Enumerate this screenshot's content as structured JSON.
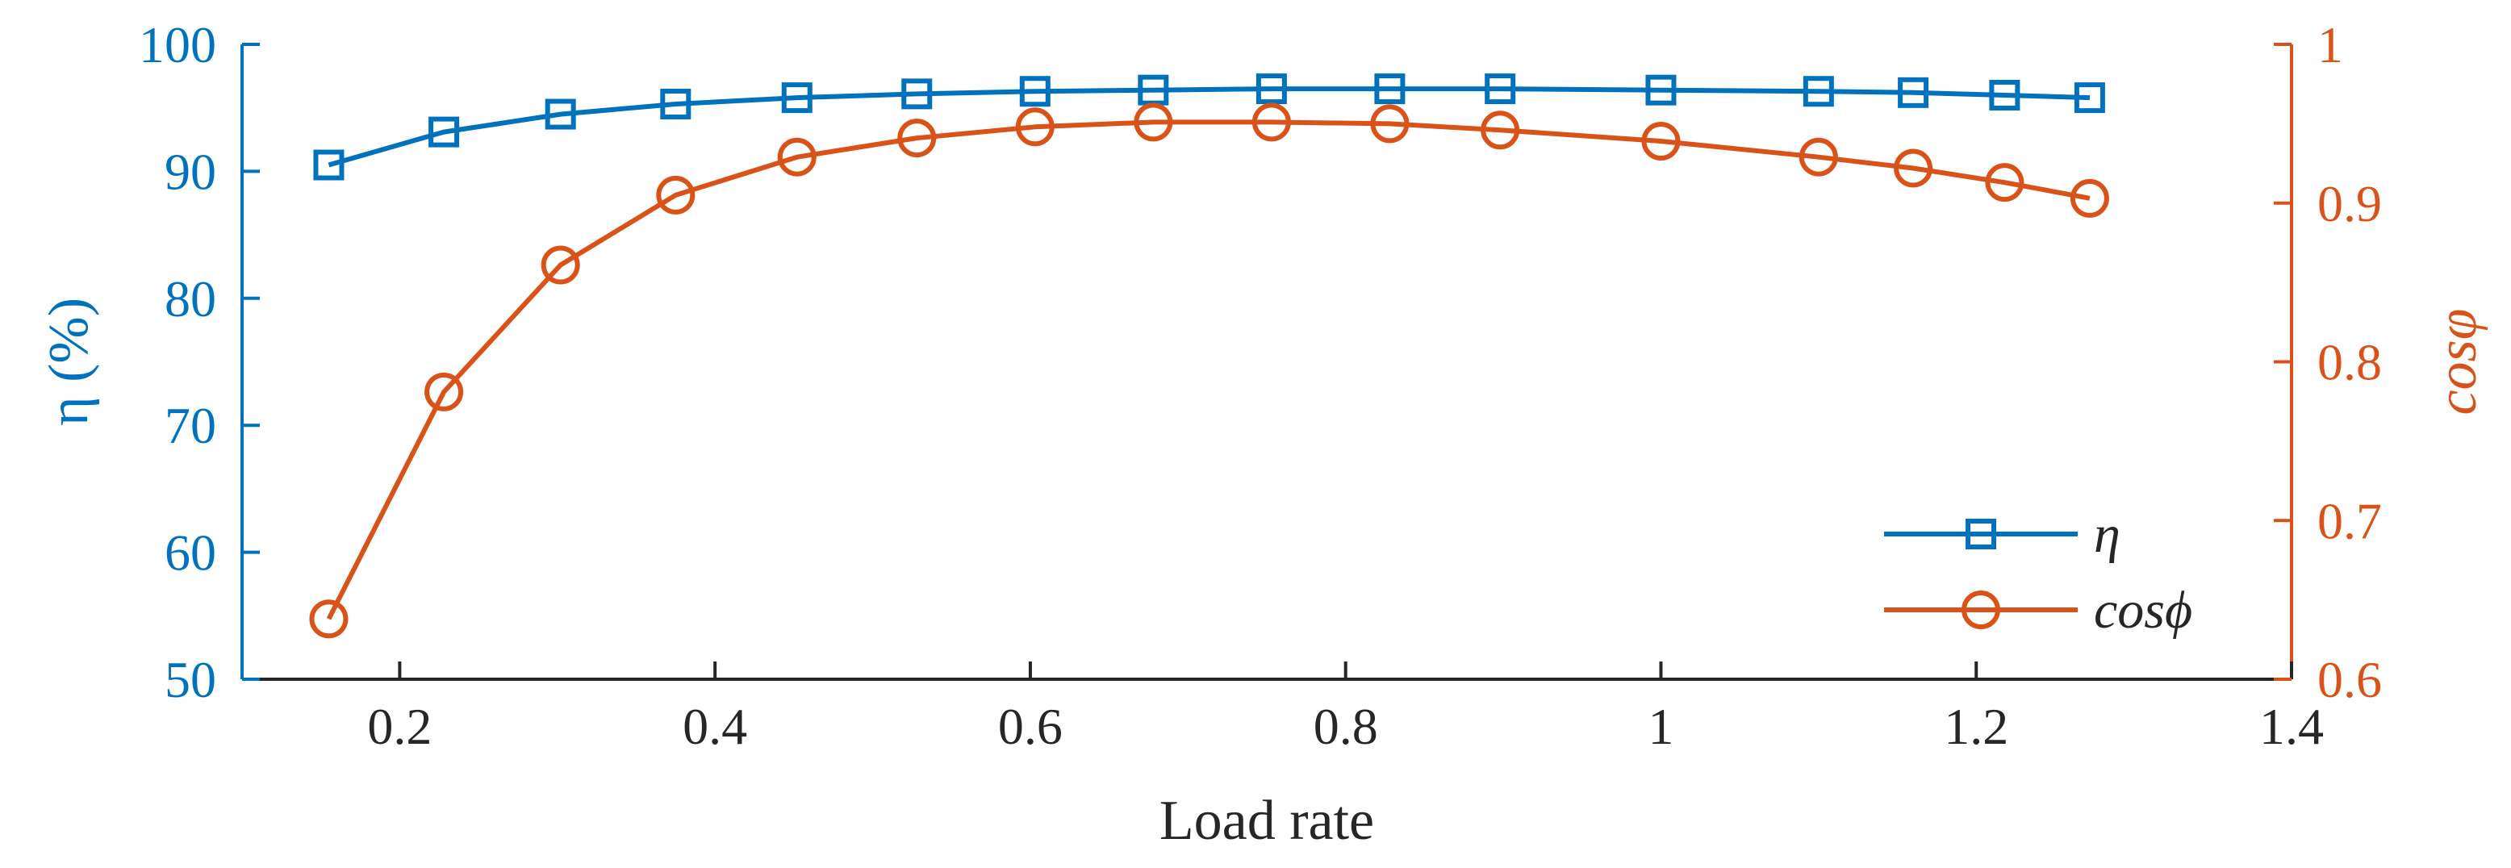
{
  "chart_data": {
    "type": "line",
    "xlabel": "Load rate",
    "ylabel_left": "η (%)",
    "ylabel_right": "cosφ",
    "xlim": [
      0.1,
      1.4
    ],
    "ylim_left": [
      50,
      100
    ],
    "ylim_right": [
      0.6,
      1.0
    ],
    "x_ticks": [
      0.2,
      0.4,
      0.6,
      0.8,
      1.0,
      1.2,
      1.4
    ],
    "x_tick_labels": [
      "0.2",
      "0.4",
      "0.6",
      "0.8",
      "1",
      "1.2",
      "1.4"
    ],
    "y_left_ticks": [
      50,
      60,
      70,
      80,
      90,
      100
    ],
    "y_left_tick_labels": [
      "50",
      "60",
      "70",
      "80",
      "90",
      "100"
    ],
    "y_right_ticks": [
      0.6,
      0.7,
      0.8,
      0.9,
      1.0
    ],
    "y_right_tick_labels": [
      "0.6",
      "0.7",
      "0.8",
      "0.9",
      "1"
    ],
    "grid": false,
    "legend_position": "bottom-right",
    "colors": {
      "eta": "#0072BD",
      "cos": "#D95319",
      "axis_left": "#0072BD",
      "axis_right": "#D95319",
      "axis_bottom": "#262626"
    },
    "series": [
      {
        "name": "η",
        "axis": "left",
        "marker": "square",
        "x": [
          0.155,
          0.228,
          0.302,
          0.375,
          0.452,
          0.528,
          0.603,
          0.678,
          0.753,
          0.828,
          0.898,
          1.0,
          1.1,
          1.16,
          1.218,
          1.272
        ],
        "values": [
          90.5,
          93.1,
          94.5,
          95.3,
          95.8,
          96.1,
          96.3,
          96.4,
          96.5,
          96.5,
          96.5,
          96.4,
          96.3,
          96.2,
          96.0,
          95.8
        ]
      },
      {
        "name": "cosϕ",
        "axis": "right",
        "marker": "circle",
        "x": [
          0.155,
          0.228,
          0.302,
          0.375,
          0.452,
          0.528,
          0.603,
          0.678,
          0.753,
          0.828,
          0.898,
          1.0,
          1.1,
          1.16,
          1.218,
          1.272
        ],
        "values": [
          0.638,
          0.781,
          0.861,
          0.905,
          0.929,
          0.941,
          0.948,
          0.951,
          0.951,
          0.95,
          0.946,
          0.939,
          0.929,
          0.922,
          0.913,
          0.903
        ]
      }
    ]
  }
}
